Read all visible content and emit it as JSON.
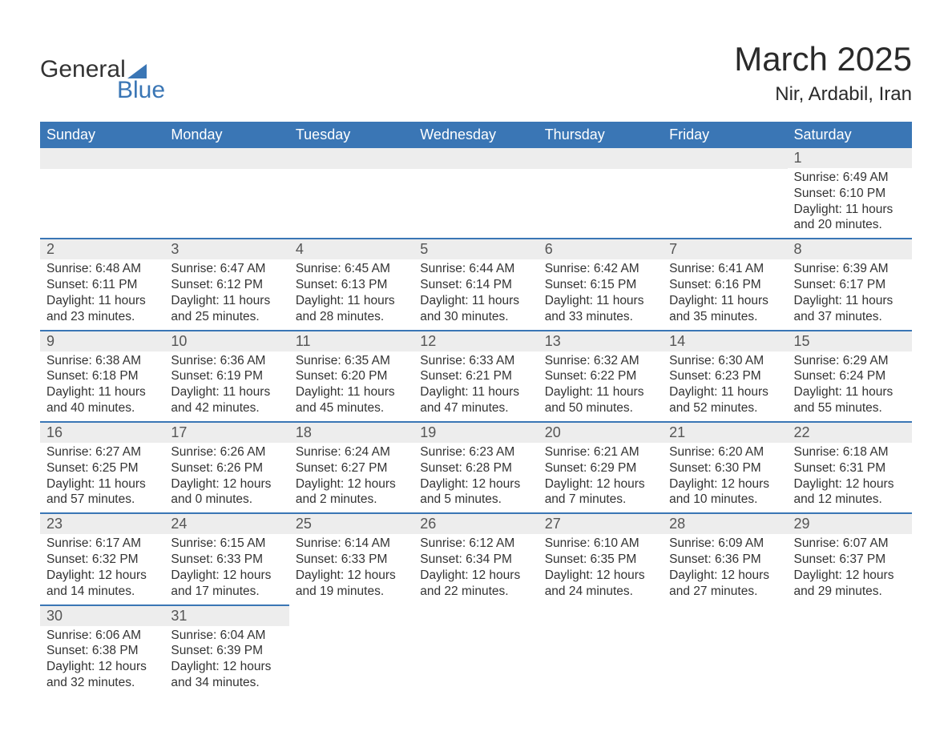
{
  "brand": {
    "word1": "General",
    "word2": "Blue"
  },
  "title": "March 2025",
  "location": "Nir, Ardabil, Iran",
  "colors": {
    "brand_blue": "#3a76b5",
    "header_bg": "#3a76b5",
    "header_text": "#ffffff",
    "daynum_bg": "#ededed",
    "text": "#333333",
    "row_divider": "#3a76b5"
  },
  "typography": {
    "title_fontsize": 42,
    "location_fontsize": 24,
    "dayheader_fontsize": 18,
    "body_fontsize": 15.5
  },
  "layout": {
    "columns": 7,
    "rows": 6
  },
  "day_headers": [
    "Sunday",
    "Monday",
    "Tuesday",
    "Wednesday",
    "Thursday",
    "Friday",
    "Saturday"
  ],
  "labels": {
    "sunrise": "Sunrise",
    "sunset": "Sunset",
    "daylight": "Daylight"
  },
  "weeks": [
    [
      null,
      null,
      null,
      null,
      null,
      null,
      {
        "d": "1",
        "sr": "6:49 AM",
        "ss": "6:10 PM",
        "dl": "11 hours and 20 minutes."
      }
    ],
    [
      {
        "d": "2",
        "sr": "6:48 AM",
        "ss": "6:11 PM",
        "dl": "11 hours and 23 minutes."
      },
      {
        "d": "3",
        "sr": "6:47 AM",
        "ss": "6:12 PM",
        "dl": "11 hours and 25 minutes."
      },
      {
        "d": "4",
        "sr": "6:45 AM",
        "ss": "6:13 PM",
        "dl": "11 hours and 28 minutes."
      },
      {
        "d": "5",
        "sr": "6:44 AM",
        "ss": "6:14 PM",
        "dl": "11 hours and 30 minutes."
      },
      {
        "d": "6",
        "sr": "6:42 AM",
        "ss": "6:15 PM",
        "dl": "11 hours and 33 minutes."
      },
      {
        "d": "7",
        "sr": "6:41 AM",
        "ss": "6:16 PM",
        "dl": "11 hours and 35 minutes."
      },
      {
        "d": "8",
        "sr": "6:39 AM",
        "ss": "6:17 PM",
        "dl": "11 hours and 37 minutes."
      }
    ],
    [
      {
        "d": "9",
        "sr": "6:38 AM",
        "ss": "6:18 PM",
        "dl": "11 hours and 40 minutes."
      },
      {
        "d": "10",
        "sr": "6:36 AM",
        "ss": "6:19 PM",
        "dl": "11 hours and 42 minutes."
      },
      {
        "d": "11",
        "sr": "6:35 AM",
        "ss": "6:20 PM",
        "dl": "11 hours and 45 minutes."
      },
      {
        "d": "12",
        "sr": "6:33 AM",
        "ss": "6:21 PM",
        "dl": "11 hours and 47 minutes."
      },
      {
        "d": "13",
        "sr": "6:32 AM",
        "ss": "6:22 PM",
        "dl": "11 hours and 50 minutes."
      },
      {
        "d": "14",
        "sr": "6:30 AM",
        "ss": "6:23 PM",
        "dl": "11 hours and 52 minutes."
      },
      {
        "d": "15",
        "sr": "6:29 AM",
        "ss": "6:24 PM",
        "dl": "11 hours and 55 minutes."
      }
    ],
    [
      {
        "d": "16",
        "sr": "6:27 AM",
        "ss": "6:25 PM",
        "dl": "11 hours and 57 minutes."
      },
      {
        "d": "17",
        "sr": "6:26 AM",
        "ss": "6:26 PM",
        "dl": "12 hours and 0 minutes."
      },
      {
        "d": "18",
        "sr": "6:24 AM",
        "ss": "6:27 PM",
        "dl": "12 hours and 2 minutes."
      },
      {
        "d": "19",
        "sr": "6:23 AM",
        "ss": "6:28 PM",
        "dl": "12 hours and 5 minutes."
      },
      {
        "d": "20",
        "sr": "6:21 AM",
        "ss": "6:29 PM",
        "dl": "12 hours and 7 minutes."
      },
      {
        "d": "21",
        "sr": "6:20 AM",
        "ss": "6:30 PM",
        "dl": "12 hours and 10 minutes."
      },
      {
        "d": "22",
        "sr": "6:18 AM",
        "ss": "6:31 PM",
        "dl": "12 hours and 12 minutes."
      }
    ],
    [
      {
        "d": "23",
        "sr": "6:17 AM",
        "ss": "6:32 PM",
        "dl": "12 hours and 14 minutes."
      },
      {
        "d": "24",
        "sr": "6:15 AM",
        "ss": "6:33 PM",
        "dl": "12 hours and 17 minutes."
      },
      {
        "d": "25",
        "sr": "6:14 AM",
        "ss": "6:33 PM",
        "dl": "12 hours and 19 minutes."
      },
      {
        "d": "26",
        "sr": "6:12 AM",
        "ss": "6:34 PM",
        "dl": "12 hours and 22 minutes."
      },
      {
        "d": "27",
        "sr": "6:10 AM",
        "ss": "6:35 PM",
        "dl": "12 hours and 24 minutes."
      },
      {
        "d": "28",
        "sr": "6:09 AM",
        "ss": "6:36 PM",
        "dl": "12 hours and 27 minutes."
      },
      {
        "d": "29",
        "sr": "6:07 AM",
        "ss": "6:37 PM",
        "dl": "12 hours and 29 minutes."
      }
    ],
    [
      {
        "d": "30",
        "sr": "6:06 AM",
        "ss": "6:38 PM",
        "dl": "12 hours and 32 minutes."
      },
      {
        "d": "31",
        "sr": "6:04 AM",
        "ss": "6:39 PM",
        "dl": "12 hours and 34 minutes."
      },
      null,
      null,
      null,
      null,
      null
    ]
  ]
}
